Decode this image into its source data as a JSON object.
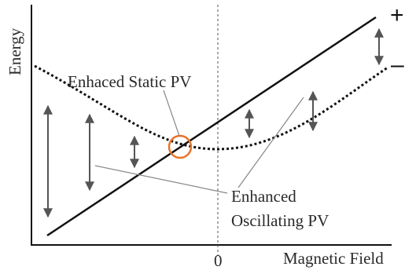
{
  "labels": {
    "y_axis": "Energy",
    "x_axis": "Magnetic Field",
    "zero": "0",
    "plus": "+",
    "minus": "–",
    "static_pv": "Enhaced Static PV",
    "oscillating_pv_line1": "Enhanced",
    "oscillating_pv_line2": "Oscillating PV"
  },
  "colors": {
    "ink": "#111111",
    "arrow": "#555555",
    "pointer": "#888888",
    "highlight": "#e8742a"
  }
}
